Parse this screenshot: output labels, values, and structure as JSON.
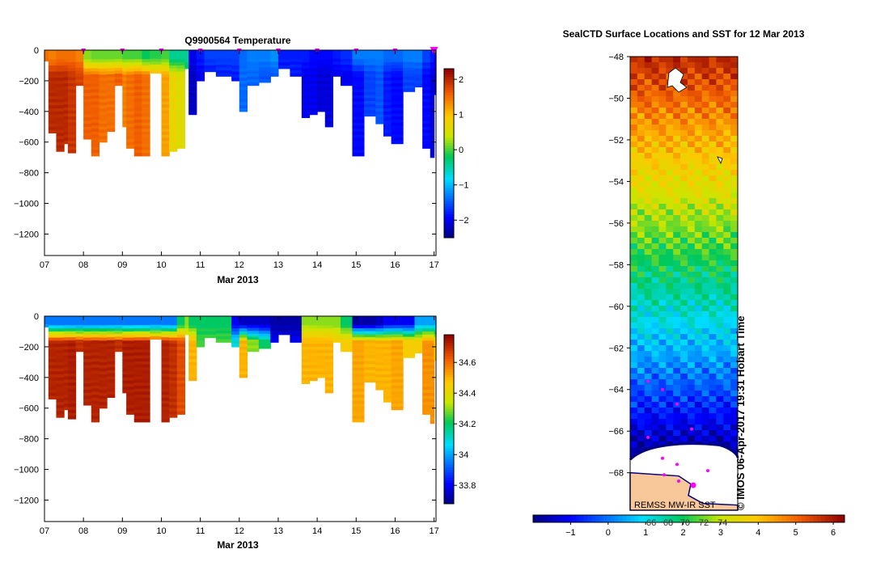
{
  "chart_data": [
    {
      "type": "heatmap",
      "id": "temperature_section",
      "title": "Q9900564  Temperature",
      "xlabel": "Mar 2013",
      "ylabel": "",
      "x_tick_labels": [
        "07",
        "08",
        "09",
        "10",
        "11",
        "12",
        "13",
        "14",
        "15",
        "16",
        "17"
      ],
      "xlim_day": [
        7.0,
        17.05
      ],
      "ylim_depth": [
        -1340,
        0
      ],
      "y_ticks": [
        0,
        -200,
        -400,
        -600,
        -800,
        -1000,
        -1200
      ],
      "colorbar": {
        "min": -2.5,
        "max": 2.3,
        "ticks": [
          -2,
          -1,
          0,
          1,
          2
        ]
      },
      "surface_marker_days": [
        8.0,
        9.0,
        10.0,
        11.0,
        12.0,
        13.0,
        14.0,
        15.0,
        16.0,
        17.0
      ],
      "profiles": [
        {
          "day": 7.0,
          "max_depth": 70,
          "surface": 1.5,
          "deep": 1.5
        },
        {
          "day": 7.1,
          "max_depth": 540,
          "surface": 1.4,
          "deep": 2.0
        },
        {
          "day": 7.3,
          "max_depth": 660,
          "surface": 1.5,
          "deep": 2.0
        },
        {
          "day": 7.5,
          "max_depth": 610,
          "surface": 1.5,
          "deep": 2.0
        },
        {
          "day": 7.6,
          "max_depth": 670,
          "surface": 1.5,
          "deep": 1.9
        },
        {
          "day": 7.8,
          "max_depth": 230,
          "surface": 1.4,
          "deep": 1.8
        },
        {
          "day": 8.0,
          "max_depth": 580,
          "surface": 0.2,
          "deep": 1.6
        },
        {
          "day": 8.2,
          "max_depth": 690,
          "surface": 0.1,
          "deep": 1.6
        },
        {
          "day": 8.4,
          "max_depth": 600,
          "surface": 0.1,
          "deep": 1.5
        },
        {
          "day": 8.6,
          "max_depth": 530,
          "surface": 0.1,
          "deep": 1.5
        },
        {
          "day": 8.8,
          "max_depth": 230,
          "surface": 0.1,
          "deep": 1.6
        },
        {
          "day": 9.0,
          "max_depth": 500,
          "surface": 0.0,
          "deep": 1.4
        },
        {
          "day": 9.1,
          "max_depth": 640,
          "surface": 0.0,
          "deep": 1.5
        },
        {
          "day": 9.3,
          "max_depth": 690,
          "surface": 0.0,
          "deep": 1.6
        },
        {
          "day": 9.5,
          "max_depth": 690,
          "surface": -0.2,
          "deep": 1.5
        },
        {
          "day": 9.7,
          "max_depth": 150,
          "surface": -0.1,
          "deep": 1.2
        },
        {
          "day": 10.0,
          "max_depth": 690,
          "surface": 0.0,
          "deep": 1.2
        },
        {
          "day": 10.2,
          "max_depth": 660,
          "surface": -0.4,
          "deep": 0.7
        },
        {
          "day": 10.4,
          "max_depth": 640,
          "surface": -0.4,
          "deep": 0.6
        },
        {
          "day": 10.6,
          "max_depth": 120,
          "surface": -0.4,
          "deep": 0.0
        },
        {
          "day": 10.7,
          "max_depth": 420,
          "surface": -2.0,
          "deep": -2.2
        },
        {
          "day": 10.9,
          "max_depth": 200,
          "surface": -1.8,
          "deep": -2.0
        },
        {
          "day": 11.1,
          "max_depth": 140,
          "surface": -1.6,
          "deep": -1.9
        },
        {
          "day": 11.4,
          "max_depth": 170,
          "surface": -1.6,
          "deep": -1.8
        },
        {
          "day": 11.8,
          "max_depth": 200,
          "surface": -1.6,
          "deep": -1.8
        },
        {
          "day": 12.0,
          "max_depth": 400,
          "surface": -1.4,
          "deep": -1.4
        },
        {
          "day": 12.2,
          "max_depth": 230,
          "surface": -1.3,
          "deep": -1.4
        },
        {
          "day": 12.5,
          "max_depth": 210,
          "surface": -1.3,
          "deep": -1.5
        },
        {
          "day": 12.8,
          "max_depth": 170,
          "surface": -1.2,
          "deep": -1.5
        },
        {
          "day": 13.0,
          "max_depth": 120,
          "surface": -1.8,
          "deep": -1.8
        },
        {
          "day": 13.3,
          "max_depth": 170,
          "surface": -1.8,
          "deep": -1.8
        },
        {
          "day": 13.6,
          "max_depth": 440,
          "surface": -1.8,
          "deep": -2.0
        },
        {
          "day": 13.8,
          "max_depth": 420,
          "surface": -1.9,
          "deep": -2.0
        },
        {
          "day": 14.0,
          "max_depth": 400,
          "surface": -1.9,
          "deep": -2.1
        },
        {
          "day": 14.2,
          "max_depth": 500,
          "surface": -1.9,
          "deep": -2.1
        },
        {
          "day": 14.4,
          "max_depth": 170,
          "surface": -1.8,
          "deep": -2.0
        },
        {
          "day": 14.6,
          "max_depth": 230,
          "surface": -1.7,
          "deep": -2.0
        },
        {
          "day": 14.9,
          "max_depth": 690,
          "surface": -1.3,
          "deep": -1.9
        },
        {
          "day": 15.2,
          "max_depth": 430,
          "surface": -1.3,
          "deep": -1.6
        },
        {
          "day": 15.5,
          "max_depth": 480,
          "surface": -1.3,
          "deep": -1.5
        },
        {
          "day": 15.7,
          "max_depth": 560,
          "surface": -1.4,
          "deep": -1.8
        },
        {
          "day": 15.9,
          "max_depth": 610,
          "surface": -1.4,
          "deep": -1.9
        },
        {
          "day": 16.2,
          "max_depth": 270,
          "surface": -1.3,
          "deep": -1.6
        },
        {
          "day": 16.5,
          "max_depth": 240,
          "surface": -1.3,
          "deep": -1.6
        },
        {
          "day": 16.7,
          "max_depth": 640,
          "surface": -1.6,
          "deep": -1.9
        },
        {
          "day": 16.9,
          "max_depth": 700,
          "surface": -1.8,
          "deep": -2.1
        },
        {
          "day": 17.0,
          "max_depth": 290,
          "surface": -1.9,
          "deep": -2.1
        }
      ]
    },
    {
      "type": "heatmap",
      "id": "salinity_section",
      "title": "",
      "xlabel": "Mar 2013",
      "ylabel": "",
      "x_tick_labels": [
        "07",
        "08",
        "09",
        "10",
        "11",
        "12",
        "13",
        "14",
        "15",
        "16",
        "17"
      ],
      "xlim_day": [
        7.0,
        17.05
      ],
      "ylim_depth": [
        -1340,
        0
      ],
      "y_ticks": [
        0,
        -200,
        -400,
        -600,
        -800,
        -1000,
        -1200
      ],
      "colorbar": {
        "min": 33.68,
        "max": 34.78,
        "ticks": [
          33.8,
          34.0,
          34.2,
          34.4,
          34.6
        ],
        "tick_labels": [
          "33.8",
          "34",
          "34.2",
          "34.4",
          "34.6"
        ]
      },
      "profiles": [
        {
          "day": 7.0,
          "max_depth": 70,
          "surface": 33.95,
          "deep": 34.3
        },
        {
          "day": 7.1,
          "max_depth": 540,
          "surface": 33.95,
          "deep": 34.72
        },
        {
          "day": 7.3,
          "max_depth": 660,
          "surface": 33.95,
          "deep": 34.72
        },
        {
          "day": 7.5,
          "max_depth": 610,
          "surface": 33.95,
          "deep": 34.72
        },
        {
          "day": 7.6,
          "max_depth": 670,
          "surface": 33.95,
          "deep": 34.73
        },
        {
          "day": 7.8,
          "max_depth": 230,
          "surface": 33.95,
          "deep": 34.7
        },
        {
          "day": 8.0,
          "max_depth": 580,
          "surface": 33.95,
          "deep": 34.72
        },
        {
          "day": 8.2,
          "max_depth": 690,
          "surface": 33.95,
          "deep": 34.72
        },
        {
          "day": 8.4,
          "max_depth": 600,
          "surface": 33.95,
          "deep": 34.72
        },
        {
          "day": 8.6,
          "max_depth": 530,
          "surface": 33.95,
          "deep": 34.72
        },
        {
          "day": 8.8,
          "max_depth": 230,
          "surface": 33.95,
          "deep": 34.7
        },
        {
          "day": 9.0,
          "max_depth": 500,
          "surface": 33.95,
          "deep": 34.73
        },
        {
          "day": 9.1,
          "max_depth": 640,
          "surface": 33.95,
          "deep": 34.73
        },
        {
          "day": 9.3,
          "max_depth": 690,
          "surface": 33.95,
          "deep": 34.73
        },
        {
          "day": 9.5,
          "max_depth": 690,
          "surface": 33.95,
          "deep": 34.73
        },
        {
          "day": 9.7,
          "max_depth": 150,
          "surface": 33.95,
          "deep": 34.7
        },
        {
          "day": 10.0,
          "max_depth": 690,
          "surface": 33.95,
          "deep": 34.72
        },
        {
          "day": 10.2,
          "max_depth": 660,
          "surface": 33.95,
          "deep": 34.7
        },
        {
          "day": 10.4,
          "max_depth": 640,
          "surface": 34.2,
          "deep": 34.65
        },
        {
          "day": 10.6,
          "max_depth": 120,
          "surface": 34.3,
          "deep": 34.45
        },
        {
          "day": 10.7,
          "max_depth": 420,
          "surface": 34.2,
          "deep": 34.5
        },
        {
          "day": 10.9,
          "max_depth": 200,
          "surface": 34.2,
          "deep": 34.25
        },
        {
          "day": 11.1,
          "max_depth": 140,
          "surface": 34.2,
          "deep": 34.25
        },
        {
          "day": 11.4,
          "max_depth": 170,
          "surface": 34.2,
          "deep": 34.25
        },
        {
          "day": 11.8,
          "max_depth": 200,
          "surface": 33.8,
          "deep": 34.1
        },
        {
          "day": 12.0,
          "max_depth": 400,
          "surface": 33.75,
          "deep": 34.5
        },
        {
          "day": 12.2,
          "max_depth": 230,
          "surface": 33.75,
          "deep": 34.3
        },
        {
          "day": 12.5,
          "max_depth": 210,
          "surface": 33.75,
          "deep": 34.2
        },
        {
          "day": 12.8,
          "max_depth": 170,
          "surface": 33.72,
          "deep": 33.8
        },
        {
          "day": 13.0,
          "max_depth": 120,
          "surface": 33.72,
          "deep": 33.78
        },
        {
          "day": 13.3,
          "max_depth": 170,
          "surface": 33.72,
          "deep": 33.8
        },
        {
          "day": 13.6,
          "max_depth": 440,
          "surface": 34.3,
          "deep": 34.5
        },
        {
          "day": 13.8,
          "max_depth": 420,
          "surface": 34.3,
          "deep": 34.5
        },
        {
          "day": 14.0,
          "max_depth": 400,
          "surface": 34.3,
          "deep": 34.5
        },
        {
          "day": 14.2,
          "max_depth": 500,
          "surface": 34.3,
          "deep": 34.5
        },
        {
          "day": 14.4,
          "max_depth": 170,
          "surface": 34.3,
          "deep": 34.45
        },
        {
          "day": 14.6,
          "max_depth": 230,
          "surface": 34.2,
          "deep": 34.45
        },
        {
          "day": 14.9,
          "max_depth": 690,
          "surface": 33.72,
          "deep": 34.52
        },
        {
          "day": 15.2,
          "max_depth": 430,
          "surface": 33.72,
          "deep": 34.5
        },
        {
          "day": 15.5,
          "max_depth": 480,
          "surface": 33.75,
          "deep": 34.5
        },
        {
          "day": 15.7,
          "max_depth": 560,
          "surface": 33.8,
          "deep": 34.5
        },
        {
          "day": 15.9,
          "max_depth": 610,
          "surface": 33.8,
          "deep": 34.52
        },
        {
          "day": 16.2,
          "max_depth": 270,
          "surface": 33.8,
          "deep": 34.45
        },
        {
          "day": 16.5,
          "max_depth": 240,
          "surface": 34.0,
          "deep": 34.45
        },
        {
          "day": 16.7,
          "max_depth": 640,
          "surface": 34.0,
          "deep": 34.55
        },
        {
          "day": 16.9,
          "max_depth": 700,
          "surface": 34.0,
          "deep": 34.55
        },
        {
          "day": 17.0,
          "max_depth": 290,
          "surface": 34.0,
          "deep": 34.45
        }
      ]
    },
    {
      "type": "heatmap",
      "id": "sst_map",
      "title": "SealCTD Surface Locations and SST for 12 Mar 2013",
      "ylim_lat": [
        -69.8,
        -48
      ],
      "y_ticks": [
        -48,
        -50,
        -52,
        -54,
        -56,
        -58,
        -60,
        -62,
        -64,
        -66,
        -68
      ],
      "ice_edge_lat": -66.9,
      "land_top_lat": -68.0,
      "colorbar": {
        "min": -2.0,
        "max": 6.3,
        "ticks": [
          -1,
          0,
          1,
          2,
          3,
          4,
          5,
          6
        ],
        "secondary_labels": [
          "66",
          "68",
          "70",
          "72",
          "74"
        ],
        "secondary_positions": [
          1.15,
          1.6,
          2.05,
          2.55,
          3.05
        ]
      },
      "sst_by_latitude": [
        {
          "lat": -48,
          "sst": 5.8
        },
        {
          "lat": -50,
          "sst": 5.0
        },
        {
          "lat": -52,
          "sst": 4.2
        },
        {
          "lat": -54,
          "sst": 3.5
        },
        {
          "lat": -56,
          "sst": 2.7
        },
        {
          "lat": -58,
          "sst": 2.0
        },
        {
          "lat": -60,
          "sst": 1.3
        },
        {
          "lat": -62,
          "sst": 0.6
        },
        {
          "lat": -64,
          "sst": -0.3
        },
        {
          "lat": -66,
          "sst": -1.3
        },
        {
          "lat": -67,
          "sst": -1.8
        }
      ],
      "seal_surface_lats": [
        -63.6,
        -64.0,
        -64.7,
        -65.9,
        -66.3,
        -67.3,
        -67.6,
        -67.9,
        -68.1,
        -68.4,
        -68.6
      ],
      "source_label": "REMSS MW-IR SST",
      "watermark": "© IMOS 06-Apr-2017 19:31 Hobart Time"
    }
  ]
}
